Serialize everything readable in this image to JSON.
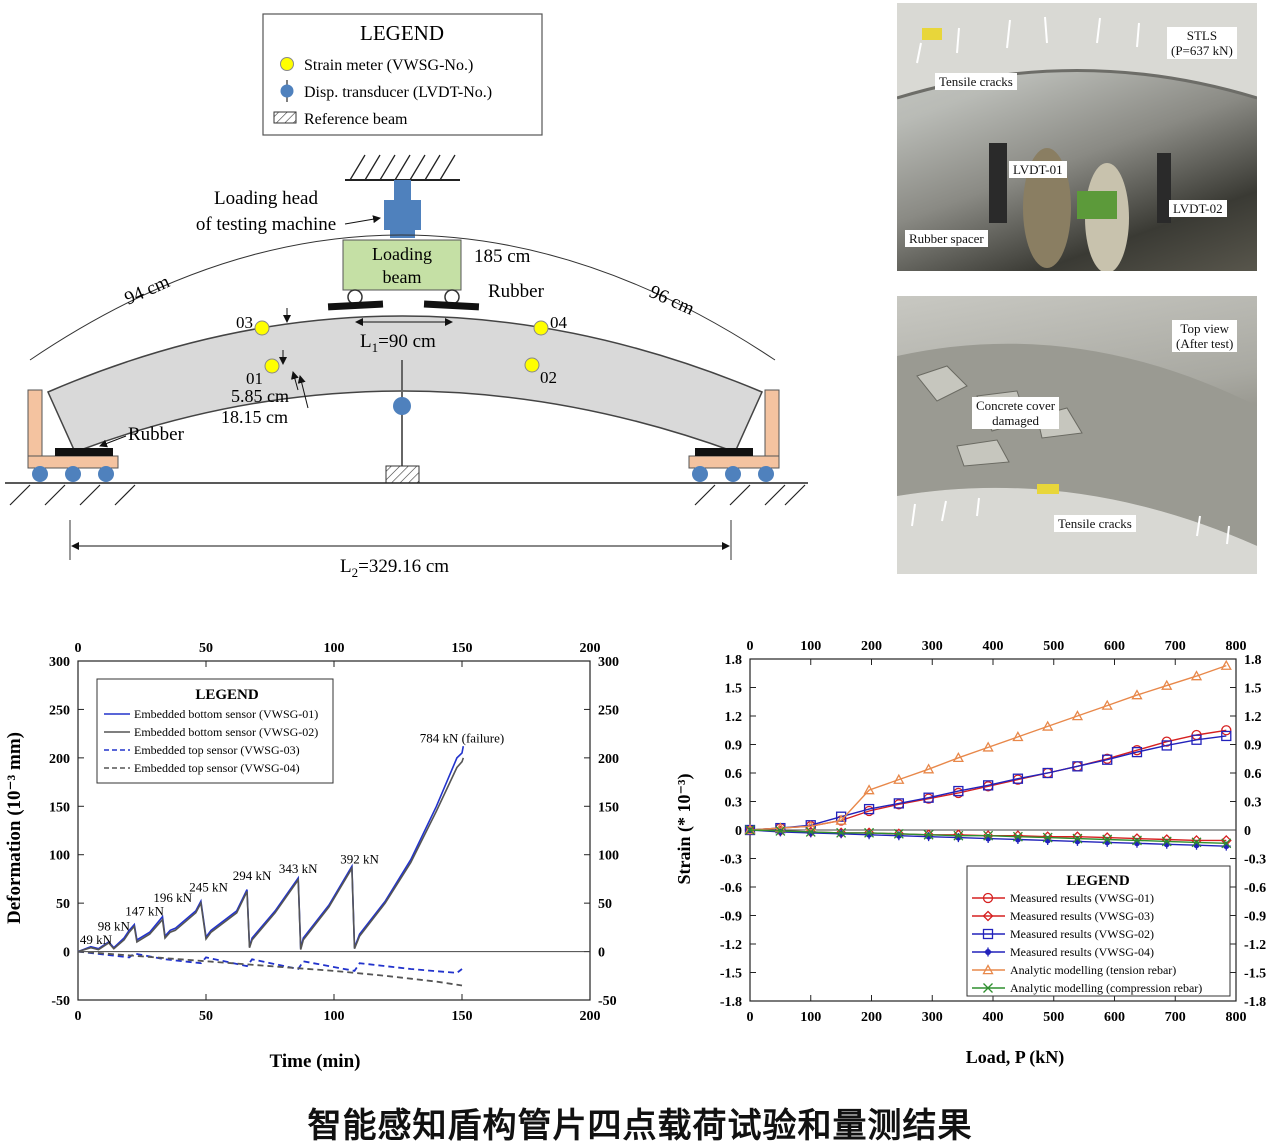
{
  "diagram": {
    "legend_title": "LEGEND",
    "legend_items": [
      {
        "label": "Strain meter (VWSG-No.)",
        "icon": "yellow-circle"
      },
      {
        "label": "Disp. transducer (LVDT-No.)",
        "icon": "blue-pin"
      },
      {
        "label": "Reference beam",
        "icon": "hatched-rect"
      }
    ],
    "loading_head_line1": "Loading head",
    "loading_head_line2": "of testing machine",
    "loading_beam_line1": "Loading",
    "loading_beam_line2": "beam",
    "arc_left": "94 cm",
    "arc_mid": "185 cm",
    "arc_right": "96 cm",
    "rubber_top": "Rubber",
    "rubber_bottom": "Rubber",
    "l1_prefix": "L",
    "l1_sub": "1",
    "l1_rest": "=90 cm",
    "l2_prefix": "L",
    "l2_sub": "2",
    "l2_rest": "=329.16 cm",
    "dim_585": "5.85 cm",
    "dim_1815": "18.15 cm",
    "sensor_labels": [
      "03",
      "01",
      "04",
      "02"
    ],
    "colors": {
      "segment": "#d9d9d9",
      "support": "#f4c3a0",
      "loading_beam": "#c5e0a5",
      "head": "#4f81bd",
      "sensor": "#ffff00",
      "lvdt": "#4f81bd"
    }
  },
  "photo_top": {
    "stls_line1": "STLS",
    "stls_line2": "(P=637 kN)",
    "tensile_cracks": "Tensile cracks",
    "lvdt01": "LVDT-01",
    "lvdt02": "LVDT-02",
    "rubber_spacer": "Rubber spacer"
  },
  "photo_bottom": {
    "top_view_line1": "Top view",
    "top_view_line2": "(After test)",
    "concrete_line1": "Concrete cover",
    "concrete_line2": "damaged",
    "tensile_cracks": "Tensile cracks"
  },
  "chart_data": [
    {
      "type": "line",
      "xlabel": "Time (min)",
      "ylabel": "Deformation (10⁻³ mm)",
      "xlim": [
        0,
        200
      ],
      "ylim": [
        -50,
        300
      ],
      "xticks": [
        0,
        50,
        100,
        150,
        200
      ],
      "yticks": [
        -50,
        0,
        50,
        100,
        150,
        200,
        250,
        300
      ],
      "legend_title": "LEGEND",
      "legend_position": "top-left",
      "series": [
        {
          "name": "Embedded bottom sensor (VWSG-01)",
          "color": "#2233cc",
          "dash": "solid",
          "x": [
            0,
            5,
            8,
            12,
            14,
            18,
            20,
            22,
            23,
            28,
            33,
            34,
            36,
            38,
            46,
            48,
            50,
            52,
            62,
            66,
            67,
            68,
            77,
            86,
            87,
            88,
            98,
            107,
            108,
            110,
            120,
            130,
            140,
            148,
            150,
            150.5
          ],
          "y": [
            0,
            5,
            3,
            10,
            4,
            14,
            22,
            28,
            12,
            20,
            36,
            16,
            22,
            24,
            42,
            52,
            15,
            22,
            42,
            64,
            5,
            14,
            42,
            76,
            3,
            14,
            48,
            88,
            4,
            18,
            52,
            95,
            150,
            200,
            205,
            212
          ]
        },
        {
          "name": "Embedded bottom sensor (VWSG-02)",
          "color": "#555555",
          "dash": "solid",
          "x": [
            0,
            5,
            8,
            12,
            14,
            18,
            20,
            22,
            23,
            28,
            33,
            34,
            36,
            38,
            46,
            48,
            50,
            52,
            62,
            66,
            67,
            68,
            77,
            86,
            87,
            88,
            98,
            107,
            108,
            110,
            120,
            130,
            140,
            148,
            150,
            150.5
          ],
          "y": [
            0,
            4,
            2,
            9,
            3,
            12,
            20,
            26,
            10,
            18,
            33,
            14,
            20,
            22,
            40,
            50,
            13,
            20,
            40,
            62,
            4,
            12,
            40,
            74,
            2,
            12,
            46,
            86,
            3,
            16,
            50,
            92,
            145,
            190,
            196,
            200
          ]
        },
        {
          "name": "Embedded top sensor (VWSG-03)",
          "color": "#2233cc",
          "dash": "dashed",
          "x": [
            0,
            10,
            20,
            22,
            34,
            48,
            50,
            66,
            68,
            86,
            88,
            108,
            110,
            130,
            148,
            150
          ],
          "y": [
            0,
            -3,
            -6,
            -2,
            -8,
            -12,
            -6,
            -15,
            -8,
            -18,
            -10,
            -20,
            -12,
            -18,
            -22,
            -18
          ]
        },
        {
          "name": "Embedded top sensor (VWSG-04)",
          "color": "#555555",
          "dash": "dashed",
          "x": [
            0,
            20,
            40,
            60,
            80,
            100,
            120,
            140,
            150
          ],
          "y": [
            0,
            -4,
            -8,
            -12,
            -16,
            -20,
            -25,
            -31,
            -35
          ]
        }
      ],
      "annotations": [
        {
          "text": "49 kN",
          "x": 7,
          "y": 8
        },
        {
          "text": "98 kN",
          "x": 14,
          "y": 22
        },
        {
          "text": "147 kN",
          "x": 26,
          "y": 37
        },
        {
          "text": "196 kN",
          "x": 37,
          "y": 51
        },
        {
          "text": "245 kN",
          "x": 51,
          "y": 62
        },
        {
          "text": "294 kN",
          "x": 68,
          "y": 74
        },
        {
          "text": "343 kN",
          "x": 86,
          "y": 81
        },
        {
          "text": "392 kN",
          "x": 110,
          "y": 91
        },
        {
          "text": "784 kN (failure)",
          "x": 150,
          "y": 216
        }
      ]
    },
    {
      "type": "line",
      "xlabel": "Load, P (kN)",
      "ylabel": "Strain (* 10⁻³)",
      "xlim": [
        0,
        800
      ],
      "ylim": [
        -1.8,
        1.8
      ],
      "xticks": [
        0,
        100,
        200,
        300,
        400,
        500,
        600,
        700,
        800
      ],
      "yticks": [
        -1.8,
        -1.5,
        -1.2,
        -0.9,
        -0.6,
        -0.3,
        0,
        0.3,
        0.6,
        0.9,
        1.2,
        1.5,
        1.8
      ],
      "legend_title": "LEGEND",
      "legend_position": "bottom-right",
      "series": [
        {
          "name": "Measured results (VWSG-01)",
          "color": "#d62020",
          "marker": "circle",
          "x": [
            0,
            50,
            100,
            150,
            196,
            245,
            294,
            343,
            392,
            441,
            490,
            539,
            588,
            637,
            686,
            735,
            784
          ],
          "y": [
            0,
            0.02,
            0.04,
            0.1,
            0.2,
            0.27,
            0.33,
            0.39,
            0.46,
            0.53,
            0.6,
            0.67,
            0.75,
            0.84,
            0.93,
            1.0,
            1.05
          ]
        },
        {
          "name": "Measured results (VWSG-03)",
          "color": "#d62020",
          "marker": "diamond",
          "x": [
            0,
            50,
            100,
            150,
            196,
            245,
            294,
            343,
            392,
            441,
            490,
            539,
            588,
            637,
            686,
            735,
            784
          ],
          "y": [
            0,
            -0.01,
            -0.02,
            -0.03,
            -0.03,
            -0.04,
            -0.05,
            -0.05,
            -0.06,
            -0.06,
            -0.07,
            -0.07,
            -0.08,
            -0.09,
            -0.1,
            -0.11,
            -0.11
          ]
        },
        {
          "name": "Measured results (VWSG-02)",
          "color": "#2222bb",
          "marker": "square",
          "x": [
            0,
            50,
            100,
            150,
            196,
            245,
            294,
            343,
            392,
            441,
            490,
            539,
            588,
            637,
            686,
            735,
            784
          ],
          "y": [
            0,
            0.02,
            0.05,
            0.14,
            0.22,
            0.28,
            0.34,
            0.41,
            0.47,
            0.54,
            0.6,
            0.67,
            0.74,
            0.82,
            0.89,
            0.95,
            0.99
          ]
        },
        {
          "name": "Measured results (VWSG-04)",
          "color": "#2222bb",
          "marker": "plus-filled",
          "x": [
            0,
            50,
            100,
            150,
            196,
            245,
            294,
            343,
            392,
            441,
            490,
            539,
            588,
            637,
            686,
            735,
            784
          ],
          "y": [
            0,
            -0.02,
            -0.03,
            -0.04,
            -0.05,
            -0.06,
            -0.07,
            -0.08,
            -0.09,
            -0.1,
            -0.11,
            -0.12,
            -0.13,
            -0.14,
            -0.15,
            -0.16,
            -0.17
          ]
        },
        {
          "name": "Analytic modelling (tension rebar)",
          "color": "#e8884a",
          "marker": "triangle",
          "x": [
            0,
            50,
            100,
            150,
            196,
            245,
            294,
            343,
            392,
            441,
            490,
            539,
            588,
            637,
            686,
            735,
            784
          ],
          "y": [
            0,
            0.02,
            0.04,
            0.1,
            0.42,
            0.53,
            0.64,
            0.76,
            0.87,
            0.98,
            1.09,
            1.2,
            1.31,
            1.42,
            1.52,
            1.62,
            1.73
          ]
        },
        {
          "name": "Analytic modelling (compression rebar)",
          "color": "#2f8f2f",
          "marker": "x",
          "x": [
            0,
            50,
            100,
            150,
            196,
            245,
            294,
            343,
            392,
            441,
            490,
            539,
            588,
            637,
            686,
            735,
            784
          ],
          "y": [
            0,
            -0.01,
            -0.02,
            -0.03,
            -0.03,
            -0.04,
            -0.05,
            -0.06,
            -0.06,
            -0.07,
            -0.08,
            -0.09,
            -0.1,
            -0.11,
            -0.12,
            -0.13,
            -0.14
          ]
        }
      ]
    }
  ],
  "caption": "智能感知盾构管片四点载荷试验和量测结果"
}
